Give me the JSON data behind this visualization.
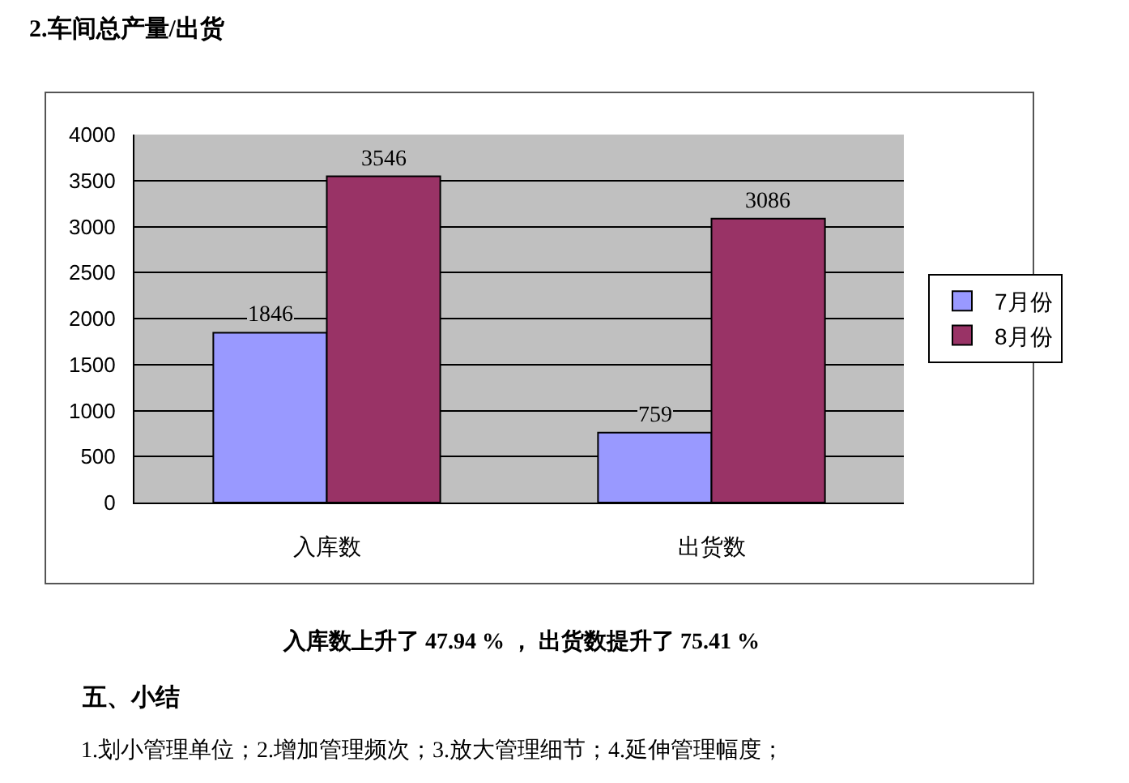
{
  "chart_data": {
    "type": "bar",
    "title": "2.车间总产量/出货",
    "categories": [
      "入库数",
      "出货数"
    ],
    "series": [
      {
        "name": "7月份",
        "color": "#9999ff",
        "values": [
          1846,
          759
        ]
      },
      {
        "name": "8月份",
        "color": "#993366",
        "values": [
          3546,
          3086
        ]
      }
    ],
    "ylim": [
      0,
      4000
    ],
    "yticks": [
      0,
      500,
      1000,
      1500,
      2000,
      2500,
      3000,
      3500,
      4000
    ],
    "grid": "y",
    "legend": "right",
    "data_labels": true,
    "annotations": [
      "入库数上升了 47.94 % ， 出货数提升了 75.41 %",
      "五、小结",
      "1.划小管理单位；2.增加管理频次；3.放大管理细节；4.延伸管理幅度；"
    ]
  }
}
